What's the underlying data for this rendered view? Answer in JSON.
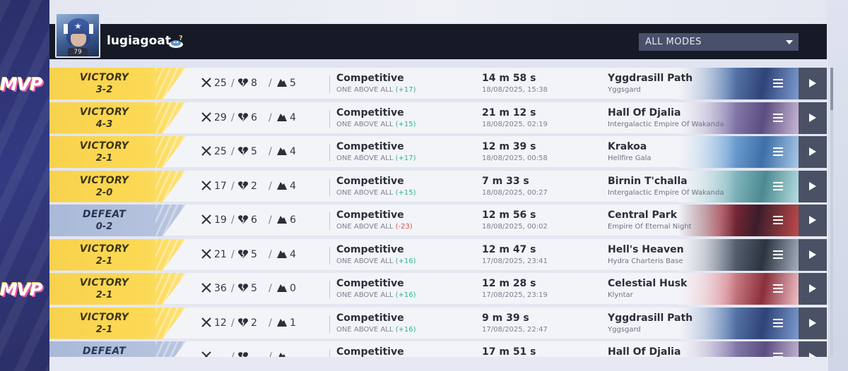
{
  "player": {
    "name": "lugiagoat",
    "level": "79"
  },
  "filter": {
    "label": "ALL MODES"
  },
  "mvp_label": "MVP",
  "colors": {
    "victory": "#fcd954",
    "defeat": "#b8c5e0",
    "rating_up": "#2cb58c",
    "rating_down": "#e04a4a"
  },
  "matches": [
    {
      "result": "VICTORY",
      "score": "3-2",
      "kills": "25",
      "deaths": "8",
      "assists": "5",
      "mode": "Competitive",
      "rank": "ONE ABOVE ALL",
      "delta": "(+17)",
      "duration": "14 m 58 s",
      "date": "18/08/2025, 15:38",
      "map": "Yggdrasill Path",
      "region": "Yggsgard",
      "mvp": true
    },
    {
      "result": "VICTORY",
      "score": "4-3",
      "kills": "29",
      "deaths": "6",
      "assists": "4",
      "mode": "Competitive",
      "rank": "ONE ABOVE ALL",
      "delta": "(+15)",
      "duration": "21 m 12 s",
      "date": "18/08/2025, 02:19",
      "map": "Hall Of Djalia",
      "region": "Intergalactic Empire Of Wakanda",
      "mvp": false
    },
    {
      "result": "VICTORY",
      "score": "2-1",
      "kills": "25",
      "deaths": "5",
      "assists": "4",
      "mode": "Competitive",
      "rank": "ONE ABOVE ALL",
      "delta": "(+17)",
      "duration": "12 m 39 s",
      "date": "18/08/2025, 00:58",
      "map": "Krakoa",
      "region": "Hellfire Gala",
      "mvp": false
    },
    {
      "result": "VICTORY",
      "score": "2-0",
      "kills": "17",
      "deaths": "2",
      "assists": "4",
      "mode": "Competitive",
      "rank": "ONE ABOVE ALL",
      "delta": "(+15)",
      "duration": "7 m 33 s",
      "date": "18/08/2025, 00:27",
      "map": "Birnin T'challa",
      "region": "Intergalactic Empire Of Wakanda",
      "mvp": false
    },
    {
      "result": "DEFEAT",
      "score": "0-2",
      "kills": "19",
      "deaths": "6",
      "assists": "6",
      "mode": "Competitive",
      "rank": "ONE ABOVE ALL",
      "delta": "(-23)",
      "duration": "12 m 56 s",
      "date": "18/08/2025, 00:02",
      "map": "Central Park",
      "region": "Empire Of Eternal Night",
      "mvp": false
    },
    {
      "result": "VICTORY",
      "score": "2-1",
      "kills": "21",
      "deaths": "5",
      "assists": "4",
      "mode": "Competitive",
      "rank": "ONE ABOVE ALL",
      "delta": "(+16)",
      "duration": "12 m 47 s",
      "date": "17/08/2025, 23:41",
      "map": "Hell's Heaven",
      "region": "Hydra Charteris Base",
      "mvp": false
    },
    {
      "result": "VICTORY",
      "score": "2-1",
      "kills": "36",
      "deaths": "5",
      "assists": "0",
      "mode": "Competitive",
      "rank": "ONE ABOVE ALL",
      "delta": "(+16)",
      "duration": "12 m 28 s",
      "date": "17/08/2025, 23:19",
      "map": "Celestial Husk",
      "region": "Klyntar",
      "mvp": true
    },
    {
      "result": "VICTORY",
      "score": "2-1",
      "kills": "12",
      "deaths": "2",
      "assists": "1",
      "mode": "Competitive",
      "rank": "ONE ABOVE ALL",
      "delta": "(+16)",
      "duration": "9 m 39 s",
      "date": "17/08/2025, 22:47",
      "map": "Yggdrasill Path",
      "region": "Yggsgard",
      "mvp": false
    },
    {
      "result": "DEFEAT",
      "score": "",
      "kills": "",
      "deaths": "",
      "assists": "",
      "mode": "Competitive",
      "rank": "",
      "delta": "",
      "duration": "17 m 51 s",
      "date": "",
      "map": "Hall Of Djalia",
      "region": "",
      "mvp": false
    }
  ]
}
